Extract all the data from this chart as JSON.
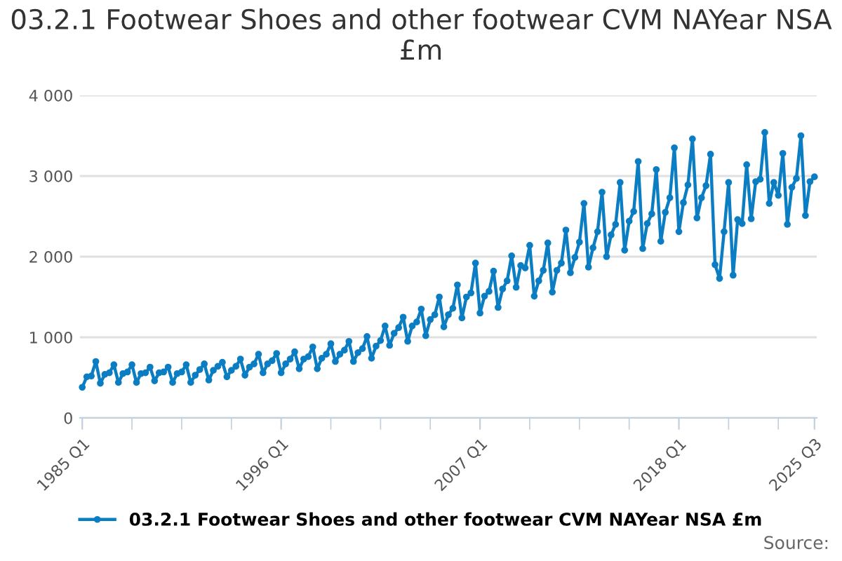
{
  "chart_data": {
    "type": "line",
    "title": "03.2.1 Footwear Shoes and other footwear CVM NAYear NSA £m",
    "categories": [
      "1985 Q1",
      null,
      null,
      null,
      null,
      null,
      null,
      null,
      null,
      null,
      null,
      null,
      null,
      null,
      null,
      null,
      null,
      null,
      null,
      null,
      null,
      null,
      null,
      null,
      null,
      null,
      null,
      null,
      null,
      null,
      null,
      null,
      null,
      null,
      null,
      null,
      null,
      null,
      null,
      null,
      null,
      null,
      null,
      null,
      "1996 Q1",
      null,
      null,
      null,
      null,
      null,
      null,
      null,
      null,
      null,
      null,
      null,
      null,
      null,
      null,
      null,
      null,
      null,
      null,
      null,
      null,
      null,
      null,
      null,
      null,
      null,
      null,
      null,
      null,
      null,
      null,
      null,
      null,
      null,
      null,
      null,
      null,
      null,
      null,
      null,
      null,
      null,
      null,
      null,
      "2007 Q1",
      null,
      null,
      null,
      null,
      null,
      null,
      null,
      null,
      null,
      null,
      null,
      null,
      null,
      null,
      null,
      null,
      null,
      null,
      null,
      null,
      null,
      null,
      null,
      null,
      null,
      null,
      null,
      null,
      null,
      null,
      null,
      null,
      null,
      null,
      null,
      null,
      null,
      null,
      null,
      null,
      null,
      null,
      null,
      "2018 Q1",
      null,
      null,
      null,
      null,
      null,
      null,
      null,
      null,
      null,
      null,
      null,
      null,
      null,
      null,
      null,
      null,
      null,
      null,
      null,
      null,
      null,
      null,
      null,
      null,
      null,
      null,
      null,
      null,
      null,
      "2025 Q3"
    ],
    "series": [
      {
        "name": "03.2.1 Footwear Shoes and other footwear CVM NAYear NSA £m",
        "color": "#0b7dc2",
        "values": [
          380,
          510,
          520,
          700,
          430,
          540,
          560,
          660,
          440,
          550,
          570,
          660,
          440,
          550,
          560,
          630,
          460,
          560,
          570,
          630,
          440,
          550,
          570,
          660,
          440,
          530,
          600,
          670,
          470,
          590,
          640,
          690,
          510,
          590,
          640,
          730,
          530,
          630,
          670,
          790,
          560,
          670,
          710,
          800,
          560,
          670,
          730,
          820,
          610,
          730,
          760,
          880,
          610,
          740,
          790,
          920,
          700,
          790,
          840,
          950,
          700,
          810,
          860,
          1010,
          740,
          890,
          960,
          1140,
          900,
          1050,
          1120,
          1250,
          950,
          1140,
          1190,
          1350,
          1020,
          1220,
          1280,
          1500,
          1130,
          1280,
          1360,
          1650,
          1240,
          1500,
          1550,
          1920,
          1300,
          1510,
          1570,
          1820,
          1370,
          1600,
          1700,
          2010,
          1620,
          1890,
          1860,
          2140,
          1510,
          1700,
          1830,
          2170,
          1560,
          1830,
          1920,
          2330,
          1800,
          1990,
          2180,
          2660,
          1870,
          2110,
          2310,
          2800,
          2000,
          2270,
          2400,
          2920,
          2080,
          2440,
          2560,
          3180,
          2100,
          2410,
          2530,
          3080,
          2190,
          2550,
          2730,
          3350,
          2310,
          2670,
          2890,
          3460,
          2480,
          2730,
          2880,
          3270,
          1900,
          1730,
          2310,
          2920,
          1770,
          2460,
          2410,
          3140,
          2470,
          2930,
          2960,
          3540,
          2660,
          2920,
          2760,
          3280,
          2400,
          2860,
          2970,
          3500,
          2510,
          2930,
          2990
        ]
      }
    ],
    "ylim": [
      0,
      4000
    ],
    "yticks": [
      0,
      {
        "value": 1000,
        "label": "1 000"
      },
      {
        "value": 2000,
        "label": "2 000"
      },
      {
        "value": 3000,
        "label": "3 000"
      },
      {
        "value": 4000,
        "label": "4 000"
      }
    ],
    "grid": "y",
    "legend": "bottom",
    "marker": "circle",
    "line_style": "solid",
    "annotations": [
      "Source:"
    ]
  }
}
